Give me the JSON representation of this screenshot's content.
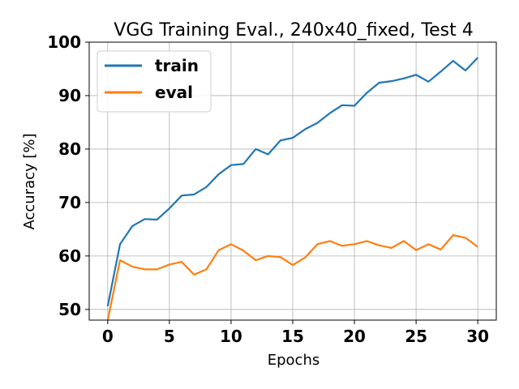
{
  "chart_data": {
    "type": "line",
    "title": "VGG Training Eval., 240x40_fixed, Test 4",
    "xlabel": "Epochs",
    "ylabel": "Accuracy [%]",
    "xlim": [
      -1.5,
      31.5
    ],
    "ylim": [
      48,
      100
    ],
    "xticks": [
      0,
      5,
      10,
      15,
      20,
      25,
      30
    ],
    "yticks": [
      50,
      60,
      70,
      80,
      90,
      100
    ],
    "grid": true,
    "legend_position": "upper-left",
    "x": [
      0,
      1,
      2,
      3,
      4,
      5,
      6,
      7,
      8,
      9,
      10,
      11,
      12,
      13,
      14,
      15,
      16,
      17,
      18,
      19,
      20,
      21,
      22,
      23,
      24,
      25,
      26,
      27,
      28,
      29,
      30
    ],
    "series": [
      {
        "name": "train",
        "color": "#1f77b4",
        "values": [
          50.6,
          62.2,
          65.6,
          66.9,
          66.8,
          68.9,
          71.3,
          71.5,
          72.9,
          75.3,
          77.0,
          77.2,
          80.0,
          79.0,
          81.6,
          82.1,
          83.7,
          84.9,
          86.7,
          88.2,
          88.1,
          90.5,
          92.4,
          92.7,
          93.2,
          93.9,
          92.6,
          94.5,
          96.5,
          94.7,
          97.1
        ]
      },
      {
        "name": "eval",
        "color": "#ff7f0e",
        "values": [
          48.0,
          59.2,
          58.0,
          57.5,
          57.5,
          58.4,
          58.9,
          56.5,
          57.5,
          61.1,
          62.2,
          61.0,
          59.2,
          60.0,
          59.8,
          58.3,
          59.7,
          62.2,
          62.8,
          61.9,
          62.2,
          62.8,
          62.0,
          61.5,
          62.8,
          61.1,
          62.2,
          61.2,
          63.9,
          63.4,
          61.7
        ]
      }
    ]
  }
}
